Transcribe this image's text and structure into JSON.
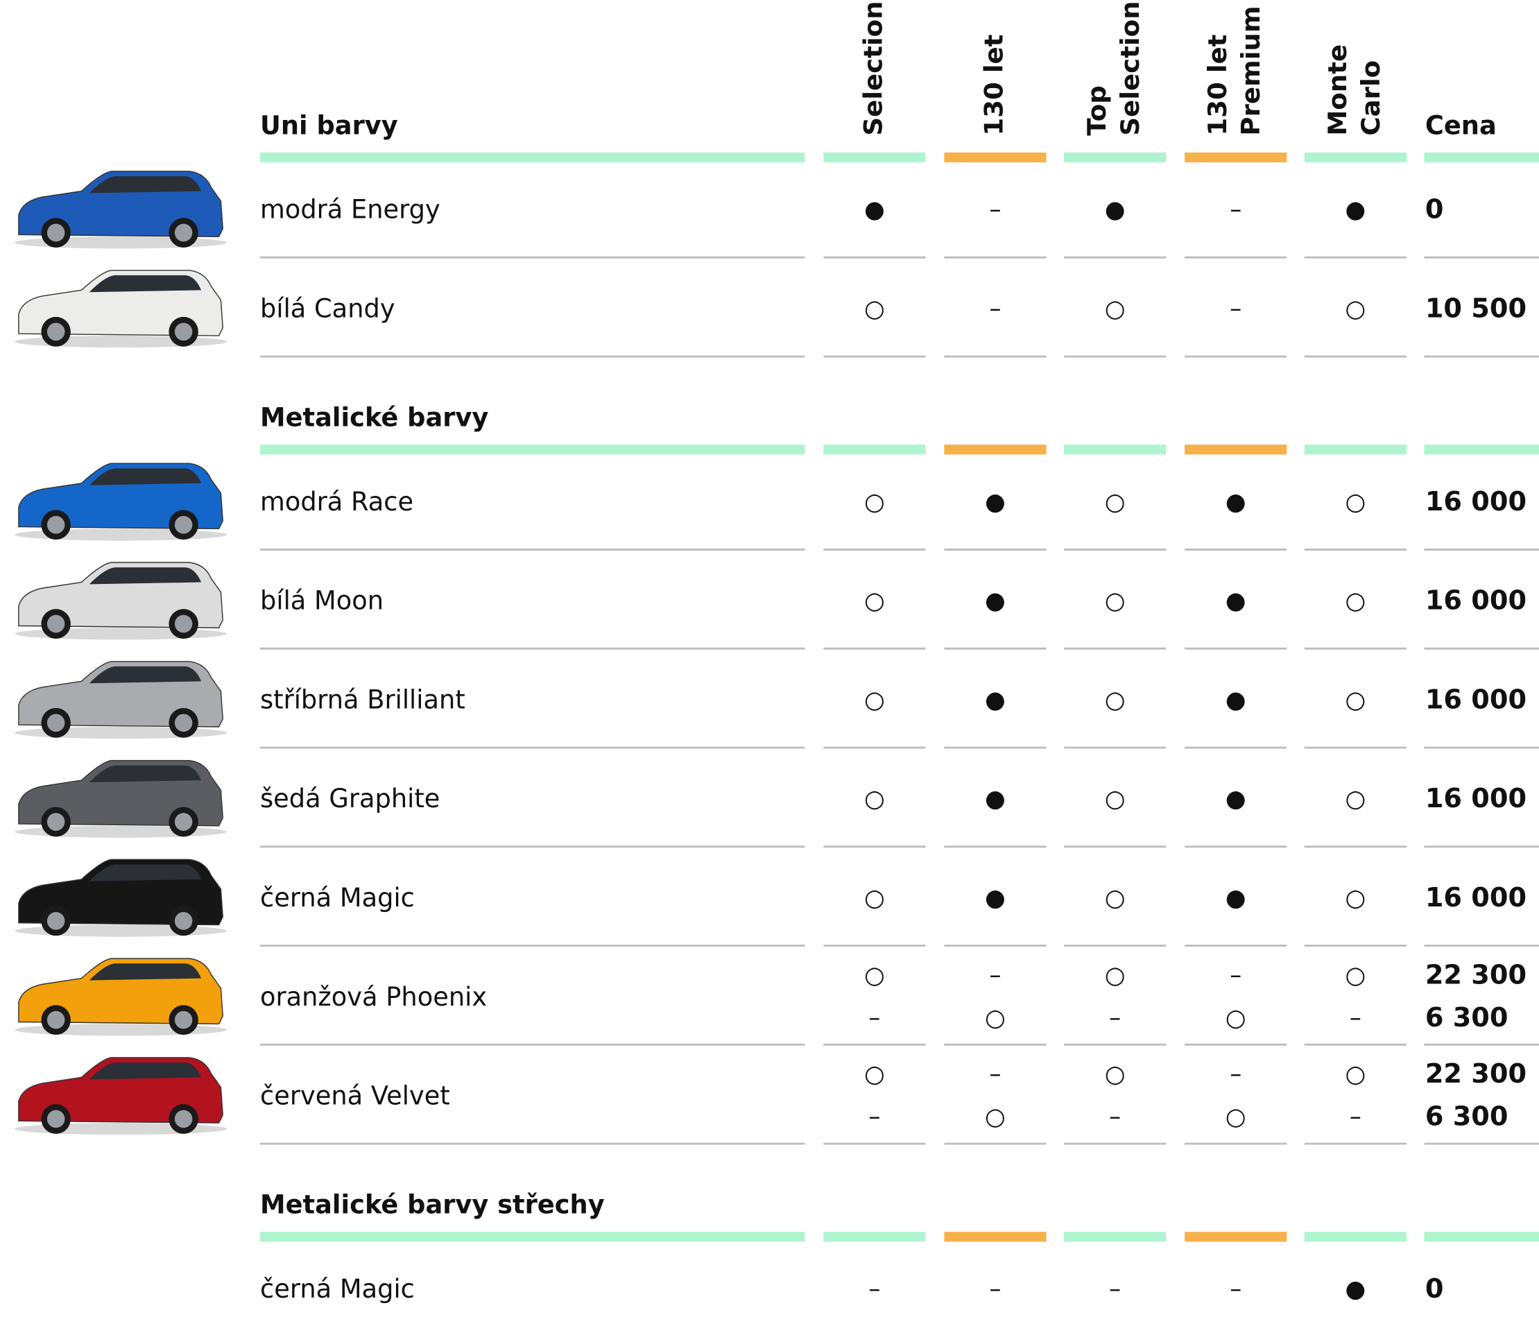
{
  "columns": [
    {
      "lines": [
        "Selection"
      ],
      "accent": "#aef5cf"
    },
    {
      "lines": [
        "130 let"
      ],
      "accent": "#f7b14a"
    },
    {
      "lines": [
        "Top",
        "Selection"
      ],
      "accent": "#aef5cf"
    },
    {
      "lines": [
        "130 let",
        "Premium"
      ],
      "accent": "#f7b14a"
    },
    {
      "lines": [
        "Monte",
        "Carlo"
      ],
      "accent": "#aef5cf"
    }
  ],
  "price_header": "Cena",
  "name_accent": "#aef5cf",
  "price_accent": "#aef5cf",
  "sections": [
    {
      "title": "Uni barvy",
      "rows": [
        {
          "name": "modrá Energy",
          "car": "#1e5bb8",
          "cells": [
            [
              "●"
            ],
            [
              "–"
            ],
            [
              "●"
            ],
            [
              "–"
            ],
            [
              "●"
            ]
          ],
          "price": [
            "0"
          ]
        },
        {
          "name": "bílá Candy",
          "car": "#ececea",
          "cells": [
            [
              "○"
            ],
            [
              "–"
            ],
            [
              "○"
            ],
            [
              "–"
            ],
            [
              "○"
            ]
          ],
          "price": [
            "10 500"
          ]
        }
      ]
    },
    {
      "title": "Metalické barvy",
      "rows": [
        {
          "name": "modrá Race",
          "car": "#1566c9",
          "cells": [
            [
              "○"
            ],
            [
              "●"
            ],
            [
              "○"
            ],
            [
              "●"
            ],
            [
              "○"
            ]
          ],
          "price": [
            "16 000"
          ]
        },
        {
          "name": "bílá Moon",
          "car": "#dcdcdc",
          "cells": [
            [
              "○"
            ],
            [
              "●"
            ],
            [
              "○"
            ],
            [
              "●"
            ],
            [
              "○"
            ]
          ],
          "price": [
            "16 000"
          ]
        },
        {
          "name": "stříbrná Brilliant",
          "car": "#a9abae",
          "cells": [
            [
              "○"
            ],
            [
              "●"
            ],
            [
              "○"
            ],
            [
              "●"
            ],
            [
              "○"
            ]
          ],
          "price": [
            "16 000"
          ]
        },
        {
          "name": "šedá Graphite",
          "car": "#5b5d62",
          "cells": [
            [
              "○"
            ],
            [
              "●"
            ],
            [
              "○"
            ],
            [
              "●"
            ],
            [
              "○"
            ]
          ],
          "price": [
            "16 000"
          ]
        },
        {
          "name": "černá Magic",
          "car": "#161616",
          "cells": [
            [
              "○"
            ],
            [
              "●"
            ],
            [
              "○"
            ],
            [
              "●"
            ],
            [
              "○"
            ]
          ],
          "price": [
            "16 000"
          ]
        },
        {
          "name": "oranžová Phoenix",
          "car": "#f2a10c",
          "cells": [
            [
              "○",
              "–"
            ],
            [
              "–",
              "○"
            ],
            [
              "○",
              "–"
            ],
            [
              "–",
              "○"
            ],
            [
              "○",
              "–"
            ]
          ],
          "price": [
            "22 300",
            "6 300"
          ]
        },
        {
          "name": "červená Velvet",
          "car": "#b3121f",
          "cells": [
            [
              "○",
              "–"
            ],
            [
              "–",
              "○"
            ],
            [
              "○",
              "–"
            ],
            [
              "–",
              "○"
            ],
            [
              "○",
              "–"
            ]
          ],
          "price": [
            "22 300",
            "6 300"
          ]
        }
      ]
    },
    {
      "title": "Metalické barvy střechy",
      "rows": [
        {
          "name": "černá Magic",
          "cells": [
            [
              "–"
            ],
            [
              "–"
            ],
            [
              "–"
            ],
            [
              "–"
            ],
            [
              "●"
            ]
          ],
          "price": [
            "0"
          ]
        }
      ]
    }
  ]
}
